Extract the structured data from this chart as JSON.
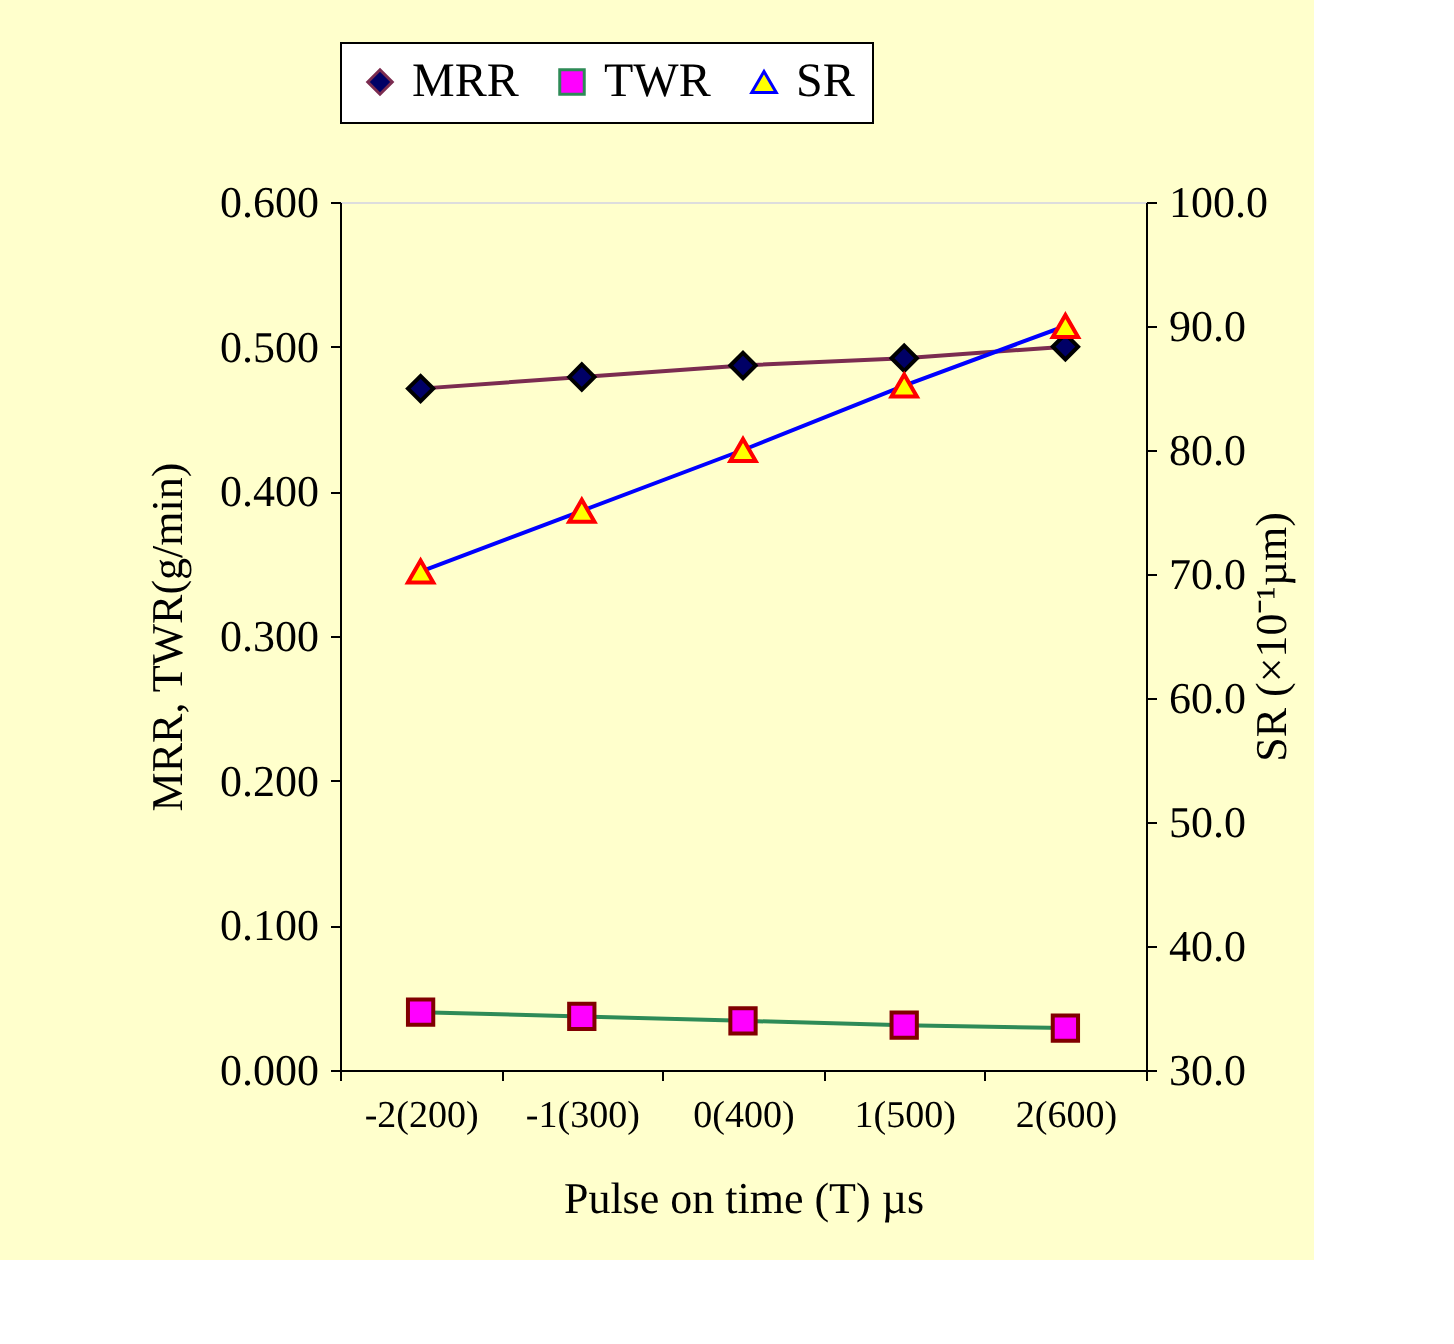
{
  "chart_data": {
    "type": "line",
    "xlabel": "Pulse on time (T) µs",
    "ylabel": "MRR, TWR(g/min)",
    "y2label": "SR (×10⁻¹µm)",
    "categories": [
      "-2(200)",
      "-1(300)",
      "0(400)",
      "1(500)",
      "2(600)"
    ],
    "series": [
      {
        "name": "MRR",
        "color": "#7b2c50",
        "marker": "diamond",
        "values": [
          0.471,
          0.479,
          0.487,
          0.492,
          0.5
        ]
      },
      {
        "name": "TWR",
        "color": "#2e8b57",
        "marker": "square",
        "values": [
          0.04,
          0.037,
          0.034,
          0.031,
          0.029
        ]
      },
      {
        "name": "SR",
        "color": "#0000ff",
        "marker": "triangle",
        "axis": "y2",
        "values": [
          70.2,
          75.1,
          80.0,
          85.2,
          90.0
        ]
      }
    ],
    "ylim": [
      0,
      0.6
    ],
    "yticks": [
      {
        "value": 0,
        "label": "0.000"
      },
      {
        "value": 0.1,
        "label": "0.100"
      },
      {
        "value": 0.2,
        "label": "0.200"
      },
      {
        "value": 0.3,
        "label": "0.300"
      },
      {
        "value": 0.4,
        "label": "0.400"
      },
      {
        "value": 0.5,
        "label": "0.500"
      },
      {
        "value": 0.6,
        "label": "0.600"
      }
    ],
    "y2lim": [
      30,
      100
    ],
    "y2ticks": [
      {
        "value": 30,
        "label": "30.0"
      },
      {
        "value": 40,
        "label": "40.0"
      },
      {
        "value": 50,
        "label": "50.0"
      },
      {
        "value": 60,
        "label": "60.0"
      },
      {
        "value": 70,
        "label": "70.0"
      },
      {
        "value": 80,
        "label": "80.0"
      },
      {
        "value": 90,
        "label": "90.0"
      },
      {
        "value": 100,
        "label": "100.0"
      }
    ],
    "legend": "top",
    "grid": false,
    "line_style": "solid"
  }
}
